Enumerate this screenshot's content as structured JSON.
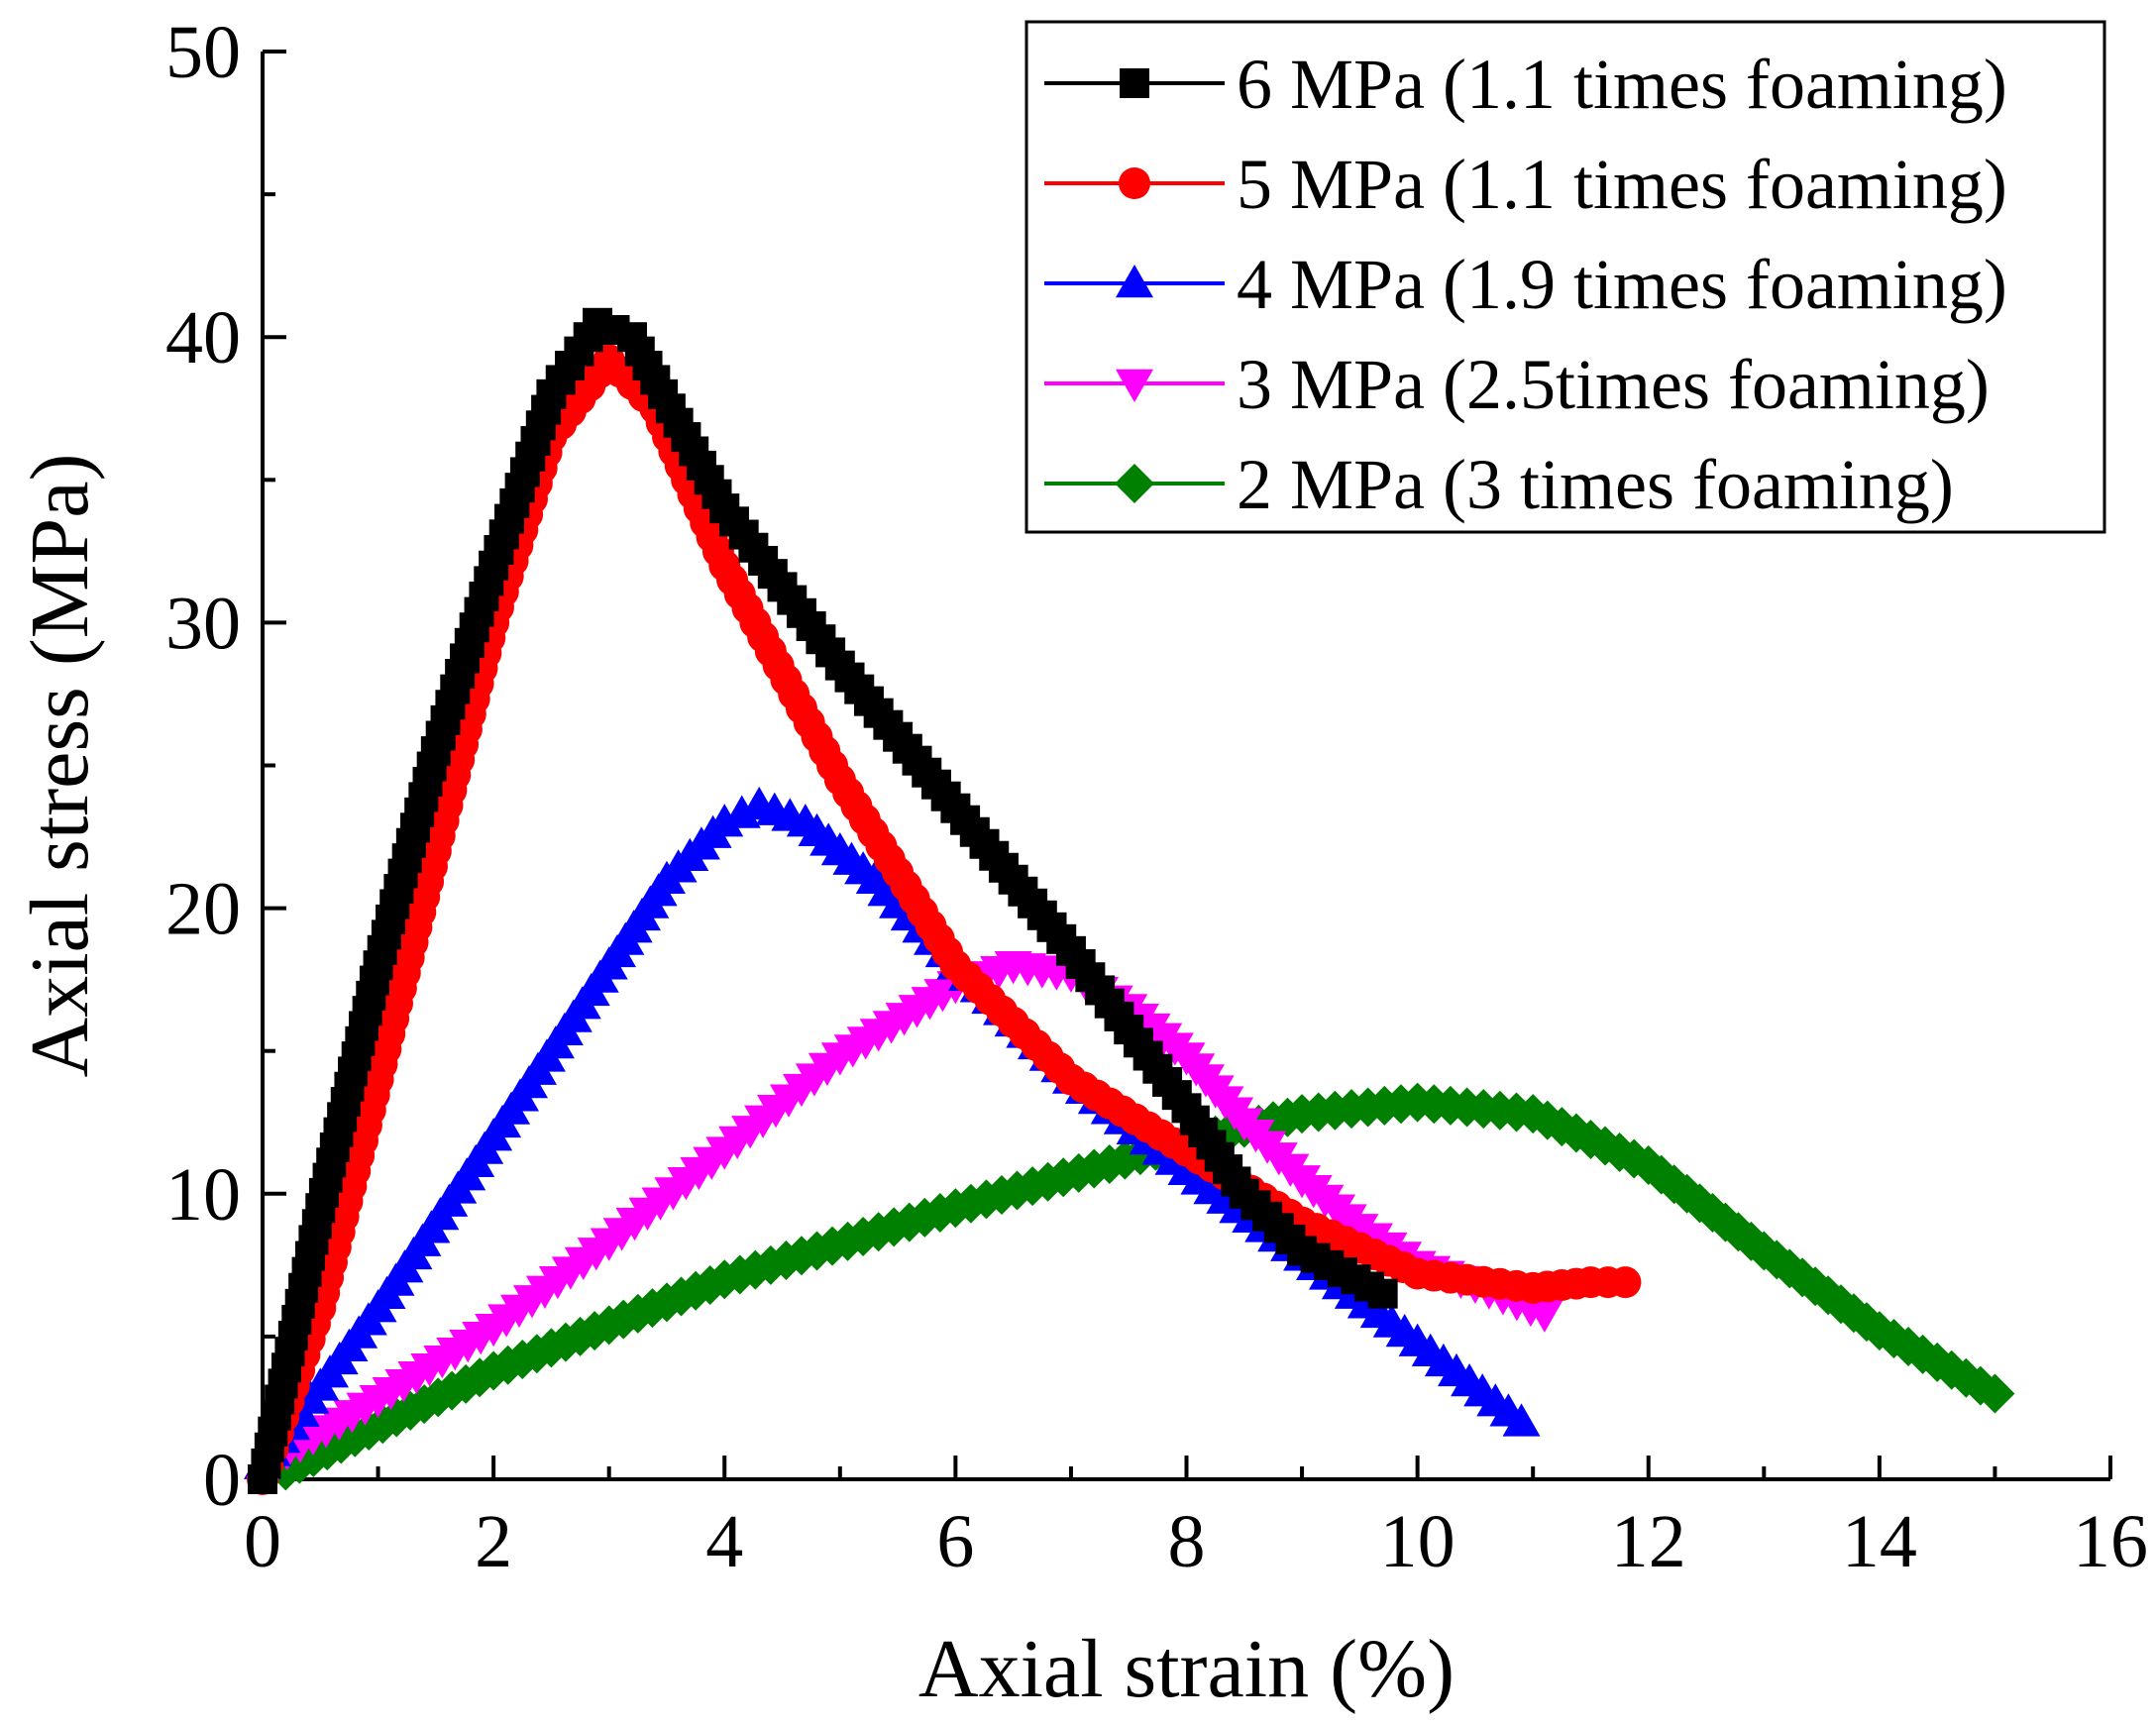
{
  "chart_data": {
    "type": "line",
    "title": "",
    "xlabel": "Axial strain (%)",
    "ylabel": "Axial stress (MPa)",
    "xlim": [
      0,
      16
    ],
    "ylim": [
      0,
      50
    ],
    "xticks": [
      0,
      2,
      4,
      6,
      8,
      10,
      12,
      14,
      16
    ],
    "yticks": [
      0,
      10,
      20,
      30,
      40,
      50
    ],
    "xtick_labels": [
      "0",
      "2",
      "4",
      "6",
      "8",
      "10",
      "12",
      "14",
      "16"
    ],
    "ytick_labels": [
      "0",
      "10",
      "20",
      "30",
      "40",
      "50"
    ],
    "legend_position": "top-right",
    "series": [
      {
        "name": "6 MPa (1.1 times foaming)",
        "color": "#000000",
        "marker": "square",
        "keypoints": [
          [
            0.0,
            0.0
          ],
          [
            0.5,
            9.5
          ],
          [
            1.0,
            18.0
          ],
          [
            1.5,
            25.5
          ],
          [
            2.0,
            32.0
          ],
          [
            2.5,
            38.0
          ],
          [
            2.9,
            40.5
          ],
          [
            3.2,
            40.0
          ],
          [
            3.6,
            37.0
          ],
          [
            4.0,
            34.0
          ],
          [
            5.0,
            28.5
          ],
          [
            6.0,
            23.5
          ],
          [
            7.0,
            18.5
          ],
          [
            8.0,
            13.0
          ],
          [
            8.5,
            10.0
          ],
          [
            9.0,
            8.0
          ],
          [
            9.7,
            6.5
          ]
        ]
      },
      {
        "name": "5 MPa (1.1 times foaming)",
        "color": "#ff0000",
        "marker": "circle",
        "keypoints": [
          [
            0.0,
            0.0
          ],
          [
            0.5,
            6.0
          ],
          [
            1.0,
            14.0
          ],
          [
            1.5,
            22.0
          ],
          [
            2.0,
            30.0
          ],
          [
            2.5,
            36.5
          ],
          [
            3.0,
            39.2
          ],
          [
            3.4,
            37.5
          ],
          [
            4.0,
            32.0
          ],
          [
            5.0,
            24.5
          ],
          [
            6.0,
            18.0
          ],
          [
            7.0,
            14.0
          ],
          [
            8.0,
            11.5
          ],
          [
            9.0,
            9.0
          ],
          [
            10.0,
            7.2
          ],
          [
            11.0,
            6.7
          ],
          [
            11.5,
            6.9
          ],
          [
            11.8,
            6.9
          ]
        ]
      },
      {
        "name": "4 MPa (1.9 times foaming)",
        "color": "#0000ff",
        "marker": "triangle-up",
        "keypoints": [
          [
            0.0,
            0.5
          ],
          [
            1.0,
            6.0
          ],
          [
            2.0,
            12.0
          ],
          [
            3.0,
            18.0
          ],
          [
            3.5,
            21.0
          ],
          [
            4.0,
            23.0
          ],
          [
            4.3,
            23.6
          ],
          [
            4.7,
            23.0
          ],
          [
            5.3,
            21.0
          ],
          [
            6.0,
            18.0
          ],
          [
            7.0,
            14.0
          ],
          [
            8.0,
            10.8
          ],
          [
            9.0,
            7.8
          ],
          [
            10.0,
            4.8
          ],
          [
            10.9,
            2.0
          ]
        ]
      },
      {
        "name": "3 MPa (2.5times foaming)",
        "color": "#ff00ff",
        "marker": "triangle-down",
        "keypoints": [
          [
            0.1,
            0.7
          ],
          [
            1.0,
            2.8
          ],
          [
            2.0,
            5.3
          ],
          [
            3.0,
            8.3
          ],
          [
            4.0,
            11.5
          ],
          [
            5.0,
            14.8
          ],
          [
            6.0,
            17.3
          ],
          [
            6.5,
            18.0
          ],
          [
            7.0,
            17.7
          ],
          [
            7.5,
            16.5
          ],
          [
            8.0,
            14.8
          ],
          [
            8.5,
            12.5
          ],
          [
            9.0,
            10.5
          ],
          [
            9.5,
            8.8
          ],
          [
            10.0,
            7.5
          ],
          [
            10.5,
            6.8
          ],
          [
            11.1,
            5.8
          ]
        ]
      },
      {
        "name": "2 MPa (3 times foaming)",
        "color": "#008000",
        "marker": "diamond",
        "keypoints": [
          [
            0.2,
            0.3
          ],
          [
            2.0,
            3.8
          ],
          [
            4.0,
            7.0
          ],
          [
            6.0,
            9.5
          ],
          [
            8.0,
            11.8
          ],
          [
            9.0,
            12.8
          ],
          [
            10.0,
            13.2
          ],
          [
            11.0,
            12.8
          ],
          [
            12.0,
            11.0
          ],
          [
            13.0,
            8.0
          ],
          [
            14.0,
            5.2
          ],
          [
            15.0,
            3.0
          ]
        ]
      }
    ]
  }
}
